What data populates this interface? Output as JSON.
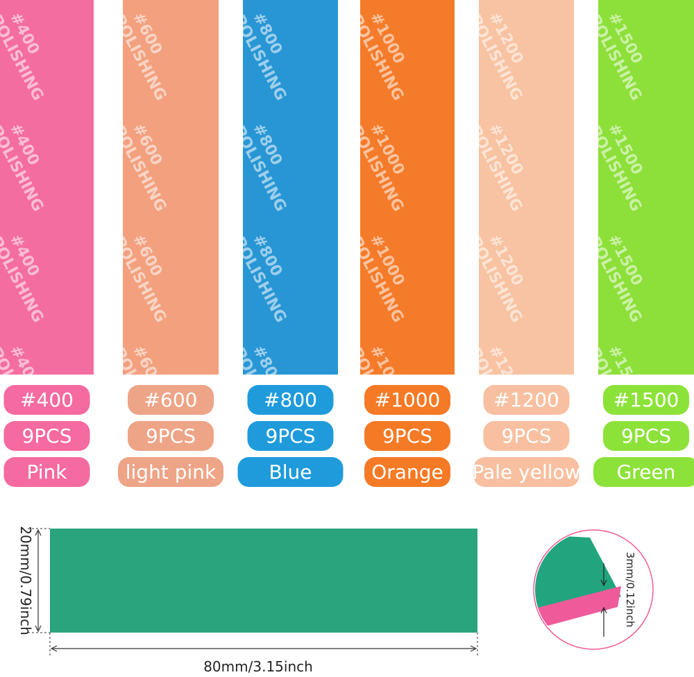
{
  "products": [
    {
      "print": [
        "#400",
        "POLISHING"
      ],
      "grit": "#400",
      "count": "9PCS",
      "color_name": "Pink",
      "color": "#f46da0",
      "pill": "#f56aa0"
    },
    {
      "print": [
        "#600",
        "POLISHING"
      ],
      "grit": "#600",
      "count": "9PCS",
      "color_name": "light pink",
      "color": "#f2a07e",
      "pill": "#eea486"
    },
    {
      "print": [
        "#800",
        "POLISHING"
      ],
      "grit": "#800",
      "count": "9PCS",
      "color_name": "Blue",
      "color": "#2896d4",
      "pill": "#1f9bdc"
    },
    {
      "print": [
        "#1000",
        "POLISHING"
      ],
      "grit": "#1000",
      "count": "9PCS",
      "color_name": "Orange",
      "color": "#f47b2a",
      "pill": "#f57a26"
    },
    {
      "print": [
        "#1200",
        "POLISHING"
      ],
      "grit": "#1200",
      "count": "9PCS",
      "color_name": "Pale yellow",
      "color": "#f8c3a2",
      "pill": "#f8c0a0"
    },
    {
      "print": [
        "#1500",
        "POLISHING"
      ],
      "grit": "#1500",
      "count": "9PCS",
      "color_name": "Green",
      "color": "#8ddf3a",
      "pill": "#8de23a"
    }
  ],
  "dimensions": {
    "height": "20mm/0.79inch",
    "length": "80mm/3.15inch",
    "thickness": "3mm/0.12inch"
  }
}
